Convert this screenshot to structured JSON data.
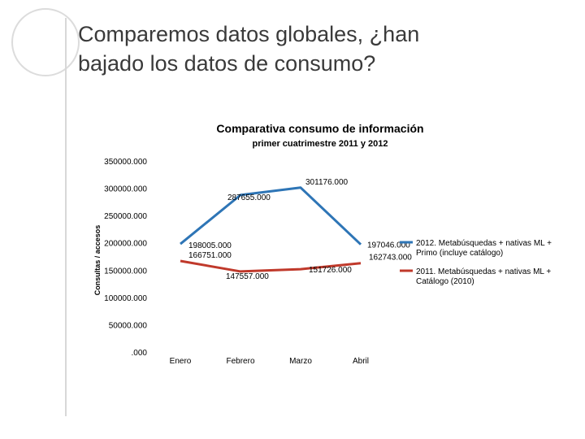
{
  "slide": {
    "title_line1": "Comparemos datos globales, ¿han",
    "title_line2": "bajado los datos de consumo?"
  },
  "chart_data": {
    "type": "line",
    "title": "Comparativa consumo de información",
    "subtitle": "primer cuatrimestre 2011 y 2012",
    "xlabel": "",
    "ylabel": "Consultas / accesos",
    "categories": [
      "Enero",
      "Febrero",
      "Marzo",
      "Abril"
    ],
    "ylim": [
      0,
      350000
    ],
    "y_ticks": [
      0,
      50000,
      100000,
      150000,
      200000,
      250000,
      300000,
      350000
    ],
    "y_tick_labels": [
      ".000",
      "50000.000",
      "100000.000",
      "150000.000",
      "200000.000",
      "250000.000",
      "300000.000",
      "350000.000"
    ],
    "grid": false,
    "legend_position": "right",
    "series": [
      {
        "name": "2012. Metabúsquedas + nativas ML + Primo (incluye catálogo)",
        "values": [
          198005,
          287655,
          301176,
          197046
        ],
        "labels": [
          "198005.000",
          "287655.000",
          "301176.000",
          "197046.000"
        ],
        "color": "#2e75b6"
      },
      {
        "name": "2011. Metabúsquedas + nativas ML + Catálogo (2010)",
        "values": [
          166751,
          147557,
          151726,
          162743
        ],
        "labels": [
          "166751.000",
          "147557.000",
          "151726.000",
          "162743.000"
        ],
        "color": "#c0392b"
      }
    ]
  }
}
